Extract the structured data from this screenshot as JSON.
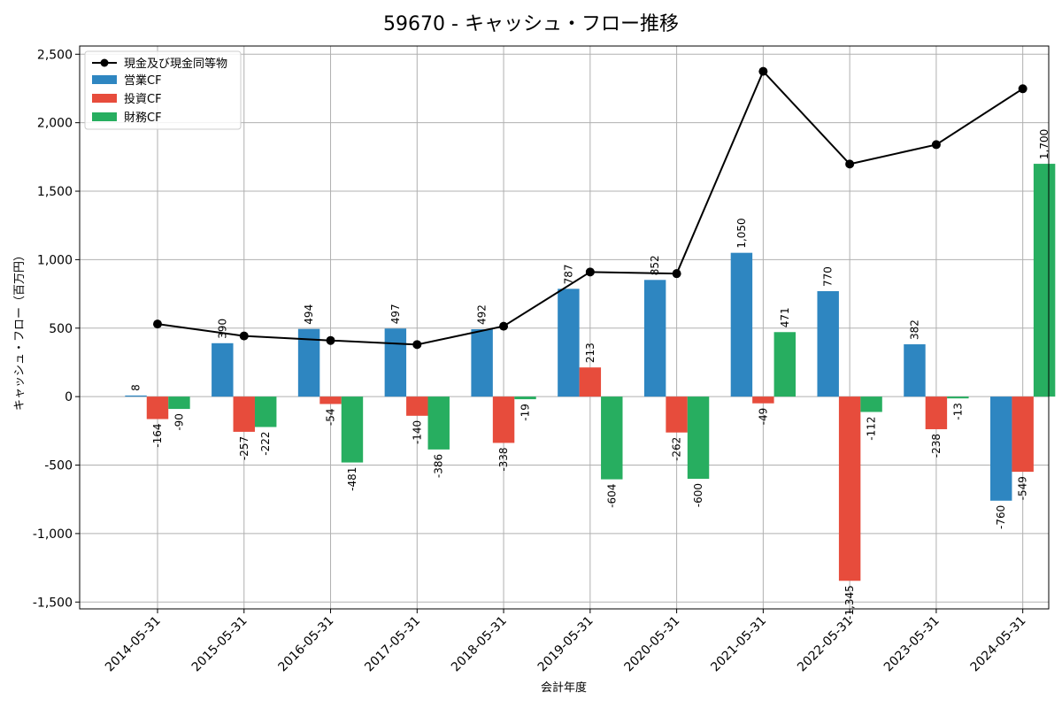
{
  "chart_data": {
    "type": "bar",
    "title": "59670 - キャッシュ・フロー推移",
    "xlabel": "会計年度",
    "ylabel": "キャッシュ・フロー（百万円）",
    "ylim": [
      -1550,
      2560
    ],
    "yticks": [
      -1500,
      -1000,
      -500,
      0,
      500,
      1000,
      1500,
      2000,
      2500
    ],
    "ytick_labels": [
      "-1,500",
      "-1,000",
      "-500",
      "0",
      "500",
      "1,000",
      "1,500",
      "2,000",
      "2,500"
    ],
    "grid": true,
    "legend_position": "top-left",
    "categories": [
      "2014-05-31",
      "2015-05-31",
      "2016-05-31",
      "2017-05-31",
      "2018-05-31",
      "2019-05-31",
      "2020-05-31",
      "2021-05-31",
      "2022-05-31",
      "2023-05-31",
      "2024-05-31"
    ],
    "series": [
      {
        "name": "営業CF",
        "type": "bar",
        "color": "#2e86c1",
        "values": [
          8,
          390,
          494,
          497,
          492,
          787,
          852,
          1050,
          770,
          382,
          -760
        ],
        "labels": [
          "8",
          "390",
          "494",
          "497",
          "492",
          "787",
          "852",
          "1,050",
          "770",
          "382",
          "-760"
        ]
      },
      {
        "name": "投資CF",
        "type": "bar",
        "color": "#e74c3c",
        "values": [
          -164,
          -257,
          -54,
          -140,
          -338,
          213,
          -262,
          -49,
          -1345,
          -238,
          -549
        ],
        "labels": [
          "-164",
          "-257",
          "-54",
          "-140",
          "-338",
          "213",
          "-262",
          "-49",
          "-1,345",
          "-238",
          "-549"
        ]
      },
      {
        "name": "財務CF",
        "type": "bar",
        "color": "#27ae60",
        "values": [
          -90,
          -222,
          -481,
          -386,
          -19,
          -604,
          -600,
          471,
          -112,
          -13,
          1700
        ],
        "labels": [
          "-90",
          "-222",
          "-481",
          "-386",
          "-19",
          "-604",
          "-600",
          "471",
          "-112",
          "-13",
          "1,700"
        ]
      },
      {
        "name": "現金及び現金同等物",
        "type": "line",
        "color": "#000000",
        "values": [
          530,
          443,
          410,
          380,
          514,
          910,
          898,
          2375,
          1698,
          1840,
          2248
        ]
      }
    ]
  }
}
